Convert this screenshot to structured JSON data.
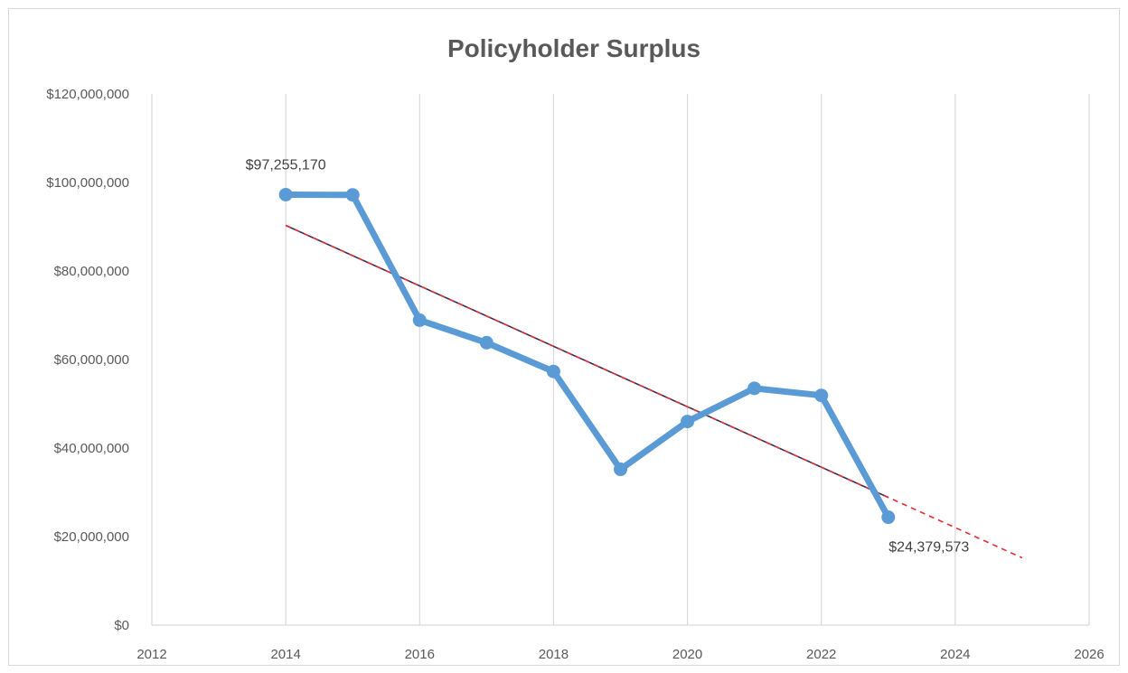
{
  "chart_data": {
    "type": "scatter",
    "title": "Policyholder Surplus",
    "xlabel": "",
    "ylabel": "",
    "xlim": [
      2012,
      2026
    ],
    "ylim": [
      0,
      120000000
    ],
    "x_ticks": [
      2012,
      2014,
      2016,
      2018,
      2020,
      2022,
      2024,
      2026
    ],
    "y_ticks": [
      0,
      20000000,
      40000000,
      60000000,
      80000000,
      100000000,
      120000000
    ],
    "y_tick_labels": [
      "$0",
      "$20,000,000",
      "$40,000,000",
      "$60,000,000",
      "$80,000,000",
      "$100,000,000",
      "$120,000,000"
    ],
    "x_tick_labels": [
      "2012",
      "2014",
      "2016",
      "2018",
      "2020",
      "2022",
      "2024",
      "2026"
    ],
    "grid": "vertical",
    "series": [
      {
        "color": "#5b9bd5",
        "x": [
          2014,
          2015,
          2016,
          2017,
          2018,
          2019,
          2020,
          2021,
          2022,
          2023
        ],
        "y": [
          97255170,
          97200000,
          68900000,
          63800000,
          57300000,
          35200000,
          46000000,
          53500000,
          51900000,
          24379573
        ]
      }
    ],
    "trendline": {
      "type": "linear",
      "x": [
        2014,
        2025
      ],
      "y": [
        90300000,
        15200000
      ],
      "forecast_from": 2023,
      "color": "#2e2e5c",
      "forecast_color": "#e03030"
    },
    "data_labels": [
      {
        "x": 2014,
        "y": 97255170,
        "text": "$97,255,170",
        "position": "above"
      },
      {
        "x": 2023,
        "y": 24379573,
        "text": "$24,379,573",
        "position": "below"
      }
    ]
  }
}
